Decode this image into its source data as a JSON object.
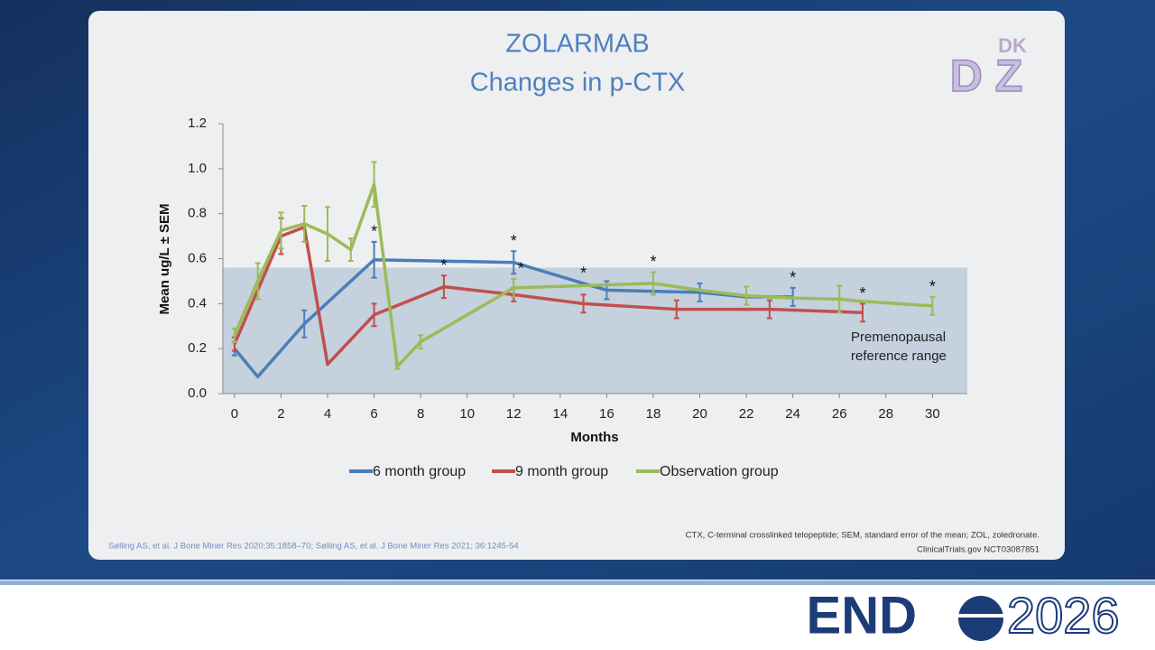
{
  "chart_data": {
    "type": "line",
    "title": [
      "ZOLARMAB",
      "Changes in p-CTX"
    ],
    "x_label": "Months",
    "y_label": "Mean ug/L ± SEM",
    "xlim": [
      -0.5,
      31.5
    ],
    "ylim": [
      0,
      1.2
    ],
    "xticks": [
      0,
      2,
      4,
      6,
      8,
      10,
      12,
      14,
      16,
      18,
      20,
      22,
      24,
      26,
      28,
      30
    ],
    "yticks": [
      {
        "value": 0,
        "label": "0.0"
      },
      0.2,
      0.4,
      0.6,
      0.8,
      {
        "value": 1,
        "label": "1.0"
      },
      1.2
    ],
    "reference_range": [
      0,
      0.56
    ],
    "reference_label": [
      "Premenopausal",
      "reference range"
    ],
    "significance_symbol": "*",
    "series": [
      {
        "name": "6 month group",
        "color": "#4a7ebb",
        "x": [
          0,
          1,
          3,
          6,
          12,
          15,
          16,
          20,
          22,
          24
        ],
        "values": [
          0.2,
          0.075,
          0.31,
          0.595,
          0.583,
          0.49,
          0.46,
          0.45,
          0.43,
          0.43
        ],
        "errors": [
          0.03,
          null,
          0.06,
          0.08,
          0.05,
          null,
          0.04,
          0.04,
          null,
          0.04
        ],
        "significant_x": [
          6,
          12,
          15,
          24
        ]
      },
      {
        "name": "9 month group",
        "color": "#c0504d",
        "x": [
          0,
          2,
          3,
          4,
          6,
          9,
          12,
          15,
          19,
          23,
          27
        ],
        "values": [
          0.22,
          0.7,
          0.74,
          0.13,
          0.35,
          0.475,
          0.44,
          0.4,
          0.375,
          0.375,
          0.36
        ],
        "errors": [
          0.03,
          0.08,
          null,
          null,
          0.05,
          0.05,
          0.03,
          0.04,
          0.04,
          0.04,
          0.04
        ],
        "significant_x": [
          9,
          27
        ]
      },
      {
        "name": "Observation group",
        "color": "#9bbb59",
        "x": [
          0,
          1,
          2,
          3,
          4,
          5,
          6,
          7,
          8,
          12,
          15,
          18,
          20,
          22,
          24,
          26,
          27,
          30
        ],
        "values": [
          0.26,
          0.5,
          0.725,
          0.755,
          0.71,
          0.64,
          0.93,
          0.12,
          0.23,
          0.47,
          0.48,
          0.49,
          0.46,
          0.435,
          0.425,
          0.42,
          0.41,
          0.39
        ],
        "errors": [
          0.03,
          0.08,
          0.08,
          0.08,
          0.12,
          0.05,
          0.1,
          0.01,
          0.03,
          0.04,
          null,
          0.05,
          null,
          0.04,
          null,
          0.06,
          null,
          0.04
        ],
        "significant_x": [
          12,
          18,
          30
        ]
      }
    ]
  },
  "logo": {
    "top": "DK",
    "letters": "D Z"
  },
  "references": "Sølling AS, et al. J Bone Miner Res 2020;35:1858–70; Sølling AS, et al. J Bone Miner Res 2021; 36:1245-54",
  "footnote": [
    "CTX, C-terminal crosslinked telopeptide; SEM, standard error of the mean; ZOL, zoledronate.",
    "ClinicalTrials.gov NCT03087851"
  ],
  "brand": {
    "left": "END",
    "right": "2026"
  }
}
